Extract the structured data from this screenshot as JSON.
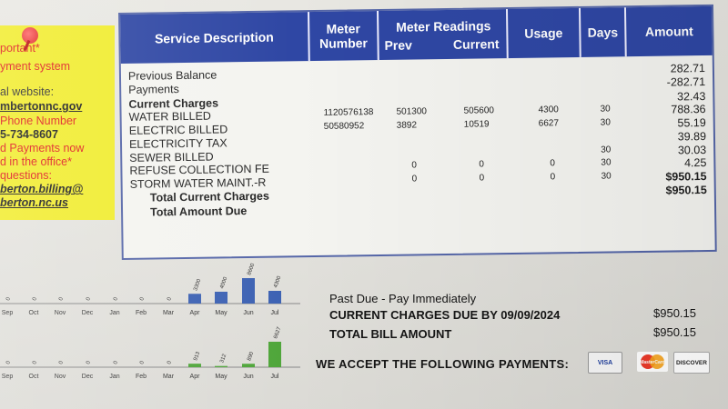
{
  "note": {
    "lines": [
      "portant*",
      "yment system",
      "",
      "al website:",
      "mbertonnc.gov",
      "Phone Number",
      "5-734-8607",
      "d Payments now",
      "d in the office*",
      "questions:",
      "berton.billing@",
      "berton.nc.us"
    ]
  },
  "table": {
    "headers": {
      "service_description": "Service Description",
      "meter_number": "Meter Number",
      "meter_readings": "Meter Readings",
      "prev": "Prev",
      "current": "Current",
      "usage": "Usage",
      "days": "Days",
      "amount": "Amount"
    },
    "rows": [
      {
        "desc": "Previous Balance",
        "meter": "",
        "prev": "",
        "current": "",
        "usage": "",
        "days": "",
        "amount": "282.71"
      },
      {
        "desc": "Payments",
        "meter": "",
        "prev": "",
        "current": "",
        "usage": "",
        "days": "",
        "amount": "-282.71"
      },
      {
        "desc": "Current Charges",
        "meter": "",
        "prev": "",
        "current": "",
        "usage": "",
        "days": "",
        "amount": "32.43"
      },
      {
        "desc": "WATER BILLED",
        "meter": "1120576138",
        "prev": "501300",
        "current": "505600",
        "usage": "4300",
        "days": "30",
        "amount": "788.36"
      },
      {
        "desc": "ELECTRIC BILLED",
        "meter": "50580952",
        "prev": "3892",
        "current": "10519",
        "usage": "6627",
        "days": "30",
        "amount": "55.19"
      },
      {
        "desc": "ELECTRICITY TAX",
        "meter": "",
        "prev": "",
        "current": "",
        "usage": "",
        "days": "",
        "amount": "39.89"
      },
      {
        "desc": "SEWER BILLED",
        "meter": "",
        "prev": "",
        "current": "",
        "usage": "",
        "days": "30",
        "amount": "30.03"
      },
      {
        "desc": "REFUSE COLLECTION FE",
        "meter": "",
        "prev": "0",
        "current": "0",
        "usage": "0",
        "days": "30",
        "amount": "4.25"
      },
      {
        "desc": "STORM WATER MAINT.-R",
        "meter": "",
        "prev": "0",
        "current": "0",
        "usage": "0",
        "days": "30",
        "amount": "$950.15"
      },
      {
        "desc": "Total Current Charges",
        "meter": "",
        "prev": "",
        "current": "",
        "usage": "",
        "days": "",
        "amount": "$950.15"
      },
      {
        "desc": "Total Amount Due",
        "meter": "",
        "prev": "",
        "current": "",
        "usage": "",
        "days": "",
        "amount": ""
      }
    ]
  },
  "chart_data": [
    {
      "type": "bar",
      "categories": [
        "Sep",
        "Oct",
        "Nov",
        "Dec",
        "Jan",
        "Feb",
        "Mar",
        "Apr",
        "May",
        "Jun",
        "Jul"
      ],
      "values": [
        0,
        0,
        0,
        0,
        0,
        0,
        0,
        3300,
        4000,
        8600,
        4300
      ],
      "ylim": [
        0,
        8600
      ]
    },
    {
      "type": "bar",
      "categories": [
        "Sep",
        "Oct",
        "Nov",
        "Dec",
        "Jan",
        "Feb",
        "Mar",
        "Apr",
        "May",
        "Jun",
        "Jul"
      ],
      "values": [
        0,
        0,
        0,
        0,
        0,
        0,
        0,
        913,
        312,
        890,
        6627
      ],
      "ylim": [
        0,
        6627
      ]
    }
  ],
  "chart_colors": {
    "water": "#3d62b3",
    "electric": "#4fa63a"
  },
  "summary": {
    "past_due": "Past Due - Pay Immediately",
    "current_due_label": "CURRENT CHARGES DUE BY 09/09/2024",
    "current_due_amount": "$950.15",
    "total_label": "TOTAL BILL AMOUNT",
    "total_amount": "$950.15",
    "accept_label": "WE ACCEPT THE FOLLOWING PAYMENTS:",
    "cards": [
      "VISA",
      "MasterCard",
      "DISCOVER"
    ]
  }
}
